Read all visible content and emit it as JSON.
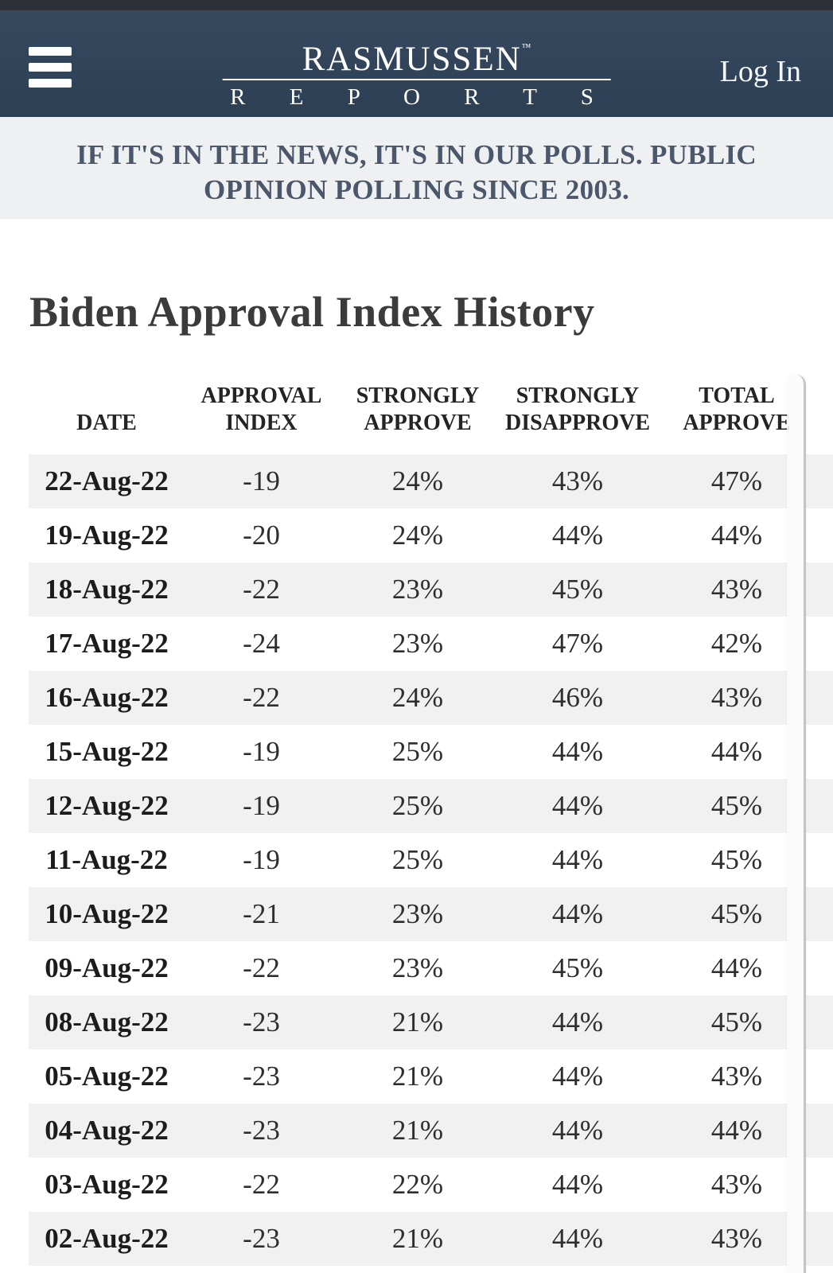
{
  "nav": {
    "logo": {
      "name": "RASMUSSEN",
      "tm": "™",
      "sub": "R E P O R T S"
    },
    "login_label": "Log In"
  },
  "banner": {
    "line1": "IF IT'S IN THE NEWS, IT'S IN OUR POLLS. PUBLIC",
    "line2": "OPINION POLLING SINCE 2003."
  },
  "page": {
    "title": "Biden Approval Index History"
  },
  "table": {
    "columns": [
      "DATE",
      "APPROVAL INDEX",
      "STRONGLY APPROVE",
      "STRONGLY DISAPPROVE",
      "TOTAL APPROVE"
    ],
    "rows": [
      {
        "date": "22-Aug-22",
        "approval_index": "-19",
        "strongly_approve": "24%",
        "strongly_disapprove": "43%",
        "total_approve": "47%"
      },
      {
        "date": "19-Aug-22",
        "approval_index": "-20",
        "strongly_approve": "24%",
        "strongly_disapprove": "44%",
        "total_approve": "44%"
      },
      {
        "date": "18-Aug-22",
        "approval_index": "-22",
        "strongly_approve": "23%",
        "strongly_disapprove": "45%",
        "total_approve": "43%"
      },
      {
        "date": "17-Aug-22",
        "approval_index": "-24",
        "strongly_approve": "23%",
        "strongly_disapprove": "47%",
        "total_approve": "42%"
      },
      {
        "date": "16-Aug-22",
        "approval_index": "-22",
        "strongly_approve": "24%",
        "strongly_disapprove": "46%",
        "total_approve": "43%"
      },
      {
        "date": "15-Aug-22",
        "approval_index": "-19",
        "strongly_approve": "25%",
        "strongly_disapprove": "44%",
        "total_approve": "44%"
      },
      {
        "date": "12-Aug-22",
        "approval_index": "-19",
        "strongly_approve": "25%",
        "strongly_disapprove": "44%",
        "total_approve": "45%"
      },
      {
        "date": "11-Aug-22",
        "approval_index": "-19",
        "strongly_approve": "25%",
        "strongly_disapprove": "44%",
        "total_approve": "45%"
      },
      {
        "date": "10-Aug-22",
        "approval_index": "-21",
        "strongly_approve": "23%",
        "strongly_disapprove": "44%",
        "total_approve": "45%"
      },
      {
        "date": "09-Aug-22",
        "approval_index": "-22",
        "strongly_approve": "23%",
        "strongly_disapprove": "45%",
        "total_approve": "44%"
      },
      {
        "date": "08-Aug-22",
        "approval_index": "-23",
        "strongly_approve": "21%",
        "strongly_disapprove": "44%",
        "total_approve": "45%"
      },
      {
        "date": "05-Aug-22",
        "approval_index": "-23",
        "strongly_approve": "21%",
        "strongly_disapprove": "44%",
        "total_approve": "43%"
      },
      {
        "date": "04-Aug-22",
        "approval_index": "-23",
        "strongly_approve": "21%",
        "strongly_disapprove": "44%",
        "total_approve": "44%"
      },
      {
        "date": "03-Aug-22",
        "approval_index": "-22",
        "strongly_approve": "22%",
        "strongly_disapprove": "44%",
        "total_approve": "43%"
      },
      {
        "date": "02-Aug-22",
        "approval_index": "-23",
        "strongly_approve": "21%",
        "strongly_disapprove": "44%",
        "total_approve": "43%"
      }
    ]
  },
  "theme": {
    "strip": "#2d3036",
    "navy-top": "#36495f",
    "navy-bottom": "#2d3f53",
    "banner-bg": "#eef0f2",
    "banner-text": "#4b576a",
    "stripe": "#f1f1f2"
  }
}
